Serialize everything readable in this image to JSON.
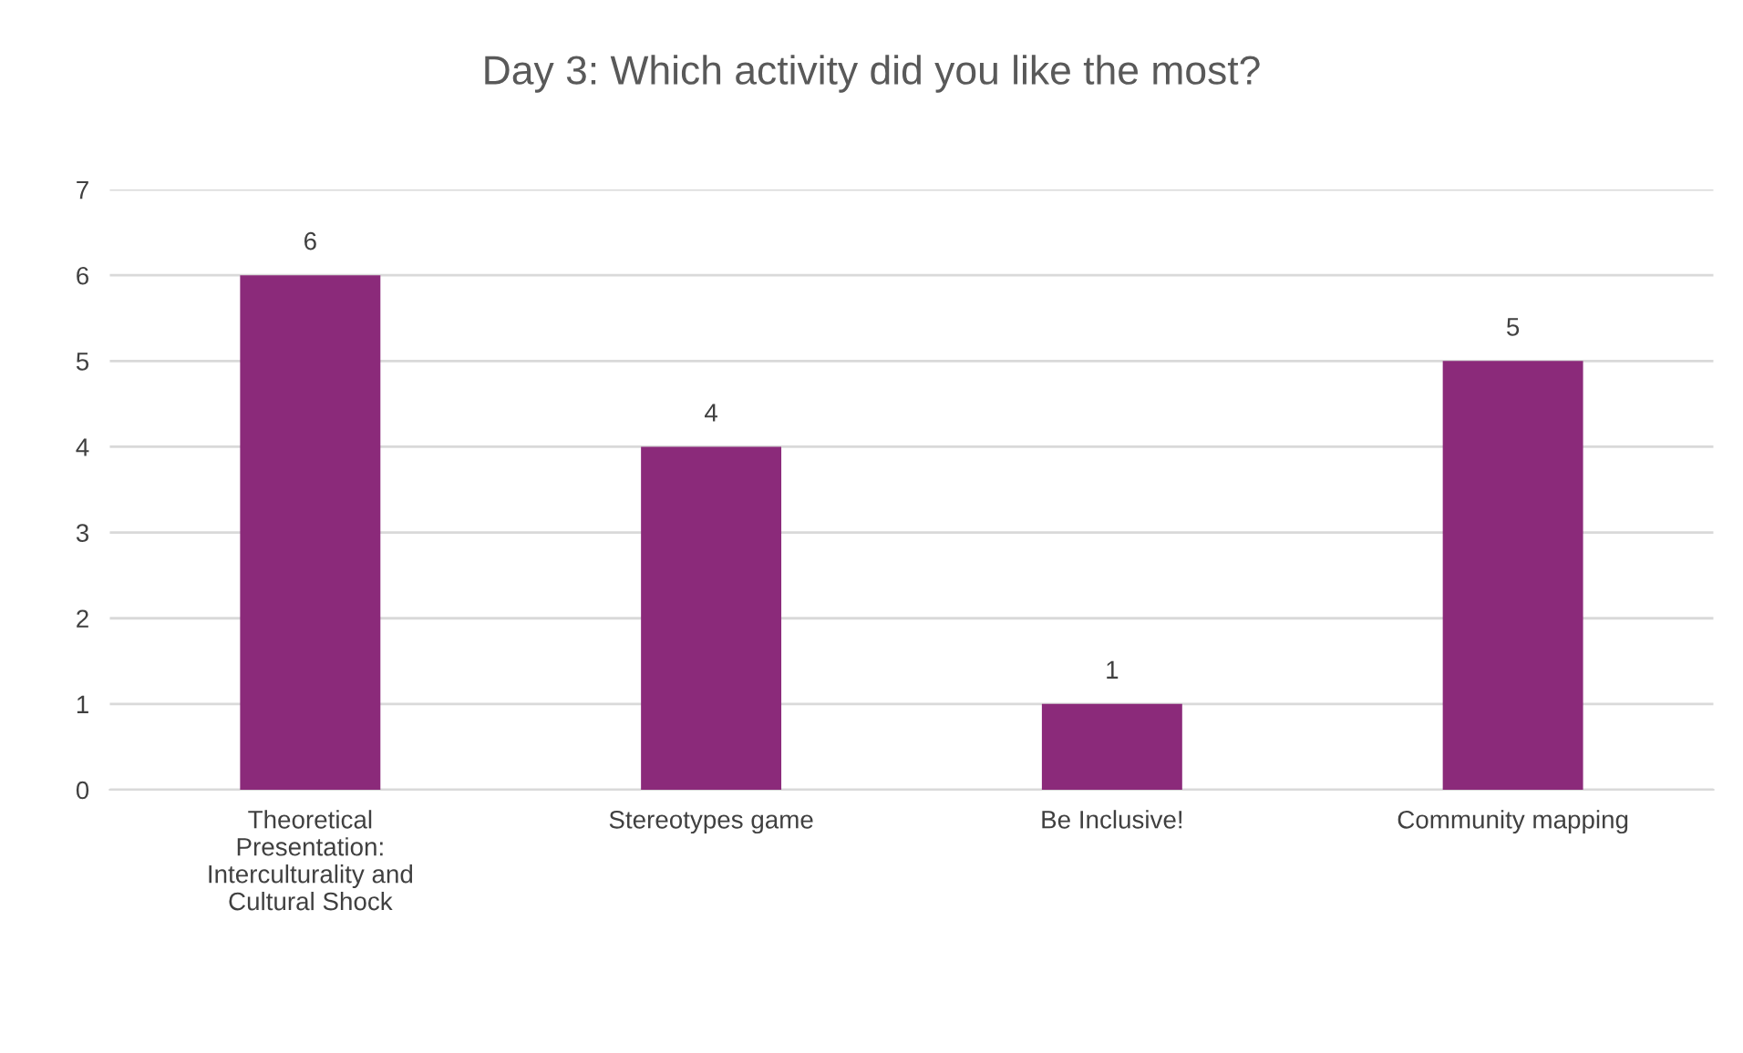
{
  "chart_data": {
    "type": "bar",
    "title": "Day 3: Which activity did you like the most?",
    "categories": [
      "Theoretical Presentation: Interculturality and Cultural Shock",
      "Stereotypes game",
      "Be Inclusive!",
      "Community mapping"
    ],
    "values": [
      6,
      4,
      1,
      5
    ],
    "color": "#8b2a7a",
    "ylim": [
      0,
      7
    ],
    "yticks": [
      0,
      1,
      2,
      3,
      4,
      5,
      6,
      7
    ],
    "grid": "y",
    "data_labels": true
  }
}
